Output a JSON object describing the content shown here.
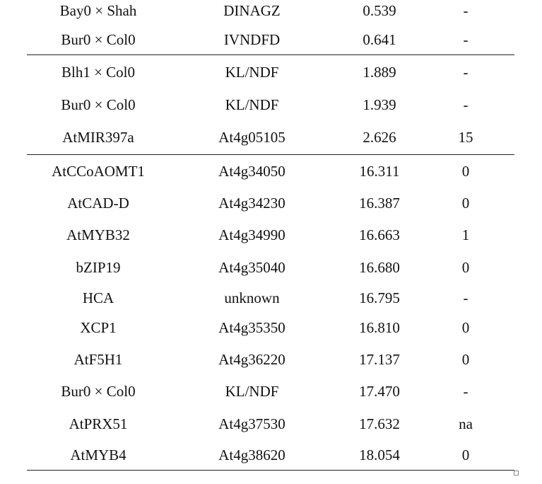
{
  "table": {
    "rows": [
      [
        "Bay0 × Shah",
        "DINAGZ",
        "0.539",
        "-"
      ],
      [
        "Bur0 × Col0",
        "IVNDFD",
        "0.641",
        "-"
      ],
      [
        "Blh1 × Col0",
        "KL/NDF",
        "1.889",
        "-"
      ],
      [
        "Bur0 × Col0",
        "KL/NDF",
        "1.939",
        "-"
      ],
      [
        "AtMIR397a",
        "At4g05105",
        "2.626",
        "15"
      ],
      [
        "AtCCoAOMT1",
        "At4g34050",
        "16.311",
        "0"
      ],
      [
        "AtCAD-D",
        "At4g34230",
        "16.387",
        "0"
      ],
      [
        "AtMYB32",
        "At4g34990",
        "16.663",
        "1"
      ],
      [
        "bZIP19",
        "At4g35040",
        "16.680",
        "0"
      ],
      [
        "HCA",
        "unknown",
        "16.795",
        "-"
      ],
      [
        "XCP1",
        "At4g35350",
        "16.810",
        "0"
      ],
      [
        "AtF5H1",
        "At4g36220",
        "17.137",
        "0"
      ],
      [
        "Bur0 × Col0",
        "KL/NDF",
        "17.470",
        "-"
      ],
      [
        "AtPRX51",
        "At4g37530",
        "17.632",
        "na"
      ],
      [
        "AtMYB4",
        "At4g38620",
        "18.054",
        "0"
      ]
    ]
  }
}
